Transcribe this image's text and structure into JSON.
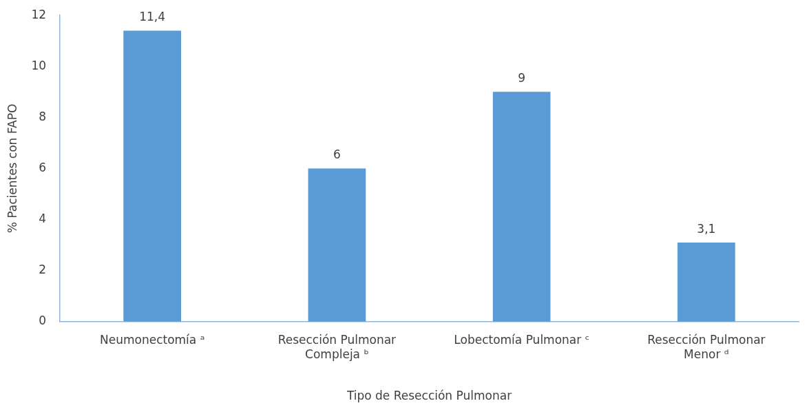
{
  "chart_data": {
    "type": "bar",
    "xlabel": "Tipo de Resección Pulmonar",
    "ylabel": "% Pacientes con FAPO",
    "categories": [
      "Neumonectomía ᵃ",
      "Resección Pulmonar Compleja ᵇ",
      "Lobectomía Pulmonar ᶜ",
      "Resección Pulmonar Menor ᵈ"
    ],
    "values": [
      11.4,
      6,
      9,
      3.1
    ],
    "value_labels": [
      "11,4",
      "6",
      "9",
      "3,1"
    ],
    "color": "#5b9bd5",
    "ylim": [
      0,
      12
    ],
    "yticks": [
      0,
      2,
      4,
      6,
      8,
      10,
      12
    ],
    "grid": false,
    "legend": false
  }
}
